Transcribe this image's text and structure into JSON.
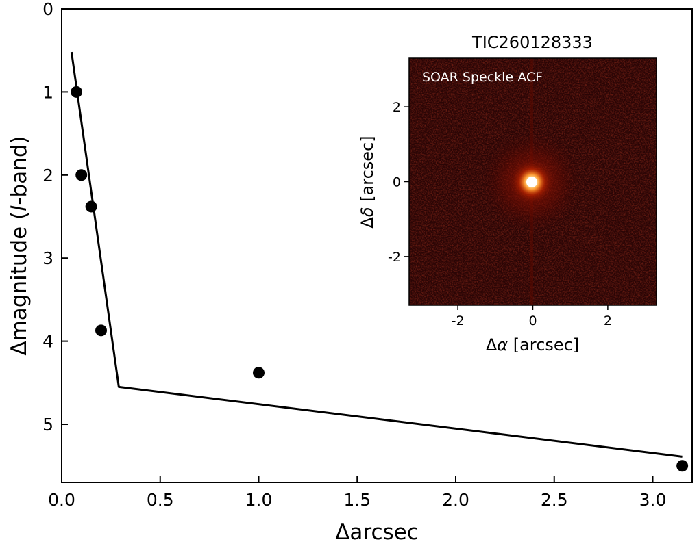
{
  "chart_data": [
    {
      "type": "line",
      "title": "",
      "xlabel": "Δarcsec",
      "ylabel_prefix": "Δmagnitude (",
      "ylabel_italic": "I",
      "ylabel_suffix": "-band)",
      "xlim": [
        0.0,
        3.2
      ],
      "ylim": [
        5.7,
        0.0
      ],
      "y_inverted": true,
      "xticks": [
        0.0,
        0.5,
        1.0,
        1.5,
        2.0,
        2.5,
        3.0
      ],
      "xtick_labels": [
        "0.0",
        "0.5",
        "1.0",
        "1.5",
        "2.0",
        "2.5",
        "3.0"
      ],
      "yticks": [
        0,
        1,
        2,
        3,
        4,
        5
      ],
      "ytick_labels": [
        "0",
        "1",
        "2",
        "3",
        "4",
        "5"
      ],
      "grid": false,
      "series": [
        {
          "kind": "line",
          "color": "#000000",
          "x": [
            0.05,
            0.29,
            3.15
          ],
          "y": [
            0.52,
            4.55,
            5.39
          ]
        },
        {
          "kind": "scatter",
          "color": "#000000",
          "x": [
            0.075,
            0.1,
            0.15,
            0.2,
            1.0,
            3.15
          ],
          "y": [
            1.0,
            2.0,
            2.38,
            3.87,
            4.38,
            5.5
          ]
        }
      ]
    },
    {
      "type": "heatmap",
      "title": "TIC260128333",
      "label": "SOAR Speckle ACF",
      "xlabel_greek": "Δ",
      "xlabel_symbol": "α",
      "xlabel_unit": " [arcsec]",
      "ylabel_greek": "Δ",
      "ylabel_symbol": "δ",
      "ylabel_unit": " [arcsec]",
      "xlim": [
        -3.3,
        3.3
      ],
      "ylim": [
        -3.3,
        3.3
      ],
      "xticks": [
        -2,
        0,
        2
      ],
      "xtick_labels": [
        "-2",
        "0",
        "2"
      ],
      "yticks": [
        2,
        0,
        -2
      ],
      "ytick_labels": [
        "2",
        "0",
        "-2"
      ],
      "colormap": [
        "#000000",
        "#3a0000",
        "#8a0a00",
        "#e04a10",
        "#ffe080",
        "#ffffff"
      ],
      "background_color": "#2a0505"
    }
  ]
}
